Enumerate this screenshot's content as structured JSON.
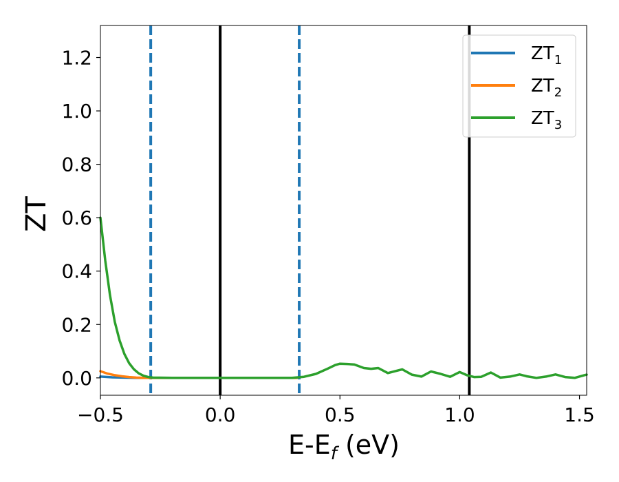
{
  "chart_data": {
    "type": "line",
    "xlabel": {
      "base": "E-E",
      "sub": "f",
      "suffix": " (eV)"
    },
    "ylabel": "ZT",
    "xlim": [
      -0.5,
      1.53
    ],
    "ylim": [
      -0.065,
      1.32
    ],
    "xticks": [
      -0.5,
      0.0,
      0.5,
      1.0,
      1.5
    ],
    "xtick_labels": [
      "−0.5",
      "0.0",
      "0.5",
      "1.0",
      "1.5"
    ],
    "yticks": [
      0.0,
      0.2,
      0.4,
      0.6,
      0.8,
      1.0,
      1.2
    ],
    "ytick_labels": [
      "0.0",
      "0.2",
      "0.4",
      "0.6",
      "0.8",
      "1.0",
      "1.2"
    ],
    "grid": false,
    "legend_position": "top-right",
    "vlines": [
      {
        "x": -0.29,
        "style": "dashed",
        "color": "#1f77b4"
      },
      {
        "x": 0.0,
        "style": "solid",
        "color": "#000000"
      },
      {
        "x": 0.33,
        "style": "dashed",
        "color": "#1f77b4"
      },
      {
        "x": 1.04,
        "style": "solid",
        "color": "#000000"
      }
    ],
    "series": [
      {
        "name": "ZT",
        "sub": "1",
        "color": "#1f77b4",
        "x": [
          -0.5,
          -0.45,
          -0.4,
          -0.35,
          -0.3,
          -0.25,
          -0.2,
          -0.1,
          0.0,
          0.1,
          0.2,
          0.3,
          0.32
        ],
        "y": [
          0.005,
          0.002,
          0.001,
          0.0,
          0.0,
          0.0,
          0.0,
          0.0,
          0.0,
          0.0,
          0.0,
          0.0,
          0.0
        ]
      },
      {
        "name": "ZT",
        "sub": "2",
        "color": "#ff7f0e",
        "x": [
          -0.5,
          -0.47,
          -0.44,
          -0.41,
          -0.38,
          -0.35,
          -0.32,
          -0.29,
          -0.2,
          -0.1,
          0.0,
          0.1,
          0.2,
          0.3,
          0.32
        ],
        "y": [
          0.025,
          0.016,
          0.01,
          0.006,
          0.003,
          0.001,
          0.0,
          0.0,
          0.0,
          0.0,
          0.0,
          0.0,
          0.0,
          0.0,
          0.0
        ]
      },
      {
        "name": "ZT",
        "sub": "3",
        "color": "#2ca02c",
        "x": [
          -0.5,
          -0.48,
          -0.46,
          -0.44,
          -0.42,
          -0.4,
          -0.38,
          -0.36,
          -0.34,
          -0.32,
          -0.3,
          -0.28,
          -0.2,
          -0.1,
          0.0,
          0.1,
          0.2,
          0.3,
          0.35,
          0.4,
          0.45,
          0.48,
          0.5,
          0.53,
          0.56,
          0.6,
          0.63,
          0.66,
          0.7,
          0.73,
          0.76,
          0.8,
          0.84,
          0.88,
          0.92,
          0.96,
          1.0,
          1.03,
          1.06,
          1.09,
          1.13,
          1.17,
          1.21,
          1.25,
          1.28,
          1.32,
          1.36,
          1.4,
          1.44,
          1.48,
          1.52,
          1.53
        ],
        "y": [
          0.6,
          0.44,
          0.31,
          0.21,
          0.14,
          0.09,
          0.055,
          0.032,
          0.017,
          0.008,
          0.003,
          0.001,
          0.0,
          0.0,
          0.0,
          0.0,
          0.0,
          0.0,
          0.004,
          0.015,
          0.035,
          0.048,
          0.053,
          0.052,
          0.05,
          0.037,
          0.034,
          0.037,
          0.018,
          0.025,
          0.032,
          0.012,
          0.005,
          0.024,
          0.015,
          0.004,
          0.022,
          0.01,
          0.003,
          0.004,
          0.02,
          0.001,
          0.005,
          0.013,
          0.006,
          0.0,
          0.005,
          0.013,
          0.003,
          0.0,
          0.01,
          0.012
        ]
      }
    ]
  }
}
